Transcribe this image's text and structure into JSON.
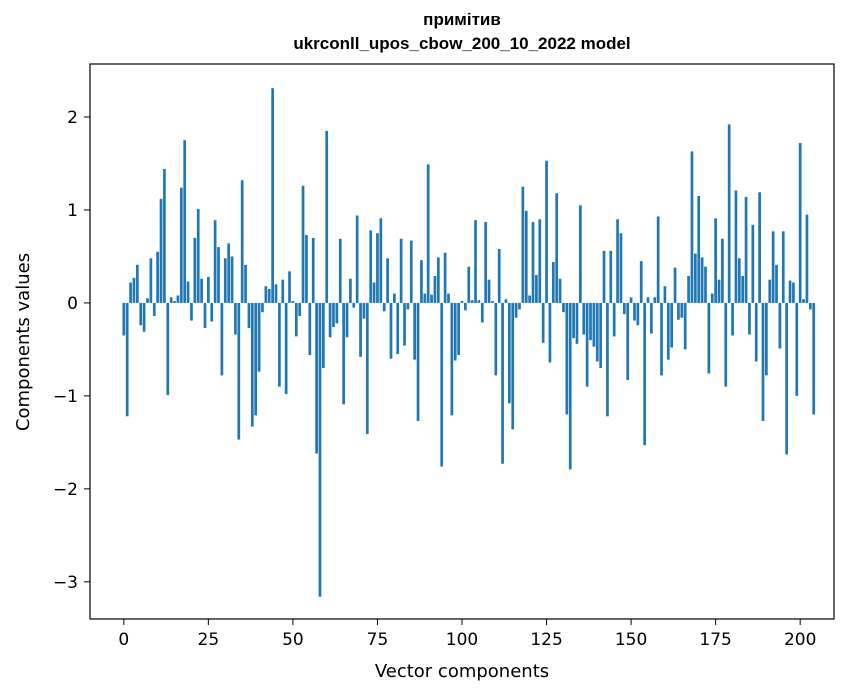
{
  "chart_data": {
    "type": "bar",
    "title": [
      "примітив",
      "ukrconll_upos_cbow_200_10_2022 model"
    ],
    "xlabel": "Vector components",
    "ylabel": "Components values",
    "xlim": [
      -10,
      210
    ],
    "ylim": [
      -3.4,
      2.57
    ],
    "xticks": [
      0,
      25,
      50,
      75,
      100,
      125,
      150,
      175,
      200
    ],
    "xtick_labels": [
      "0",
      "25",
      "50",
      "75",
      "100",
      "125",
      "150",
      "175",
      "200"
    ],
    "yticks": [
      -3,
      -2,
      -1,
      0,
      1,
      2
    ],
    "ytick_labels": [
      "−3",
      "−2",
      "−1",
      "0",
      "1",
      "2"
    ],
    "bar_color": "#1f77b4",
    "values": [
      -0.35,
      -1.22,
      0.22,
      0.27,
      0.41,
      -0.24,
      -0.31,
      0.05,
      0.48,
      -0.14,
      0.55,
      1.12,
      1.44,
      -0.99,
      0.06,
      0.02,
      0.08,
      1.24,
      1.75,
      0.23,
      -0.19,
      0.7,
      1.01,
      0.26,
      -0.27,
      0.28,
      -0.2,
      0.89,
      0.6,
      -0.78,
      0.48,
      0.64,
      0.5,
      -0.34,
      -1.47,
      1.32,
      0.41,
      -0.27,
      -1.33,
      -1.21,
      -0.74,
      -0.1,
      0.18,
      0.15,
      2.31,
      0.2,
      -0.9,
      0.25,
      -0.98,
      0.34,
      0.02,
      -0.36,
      -0.14,
      1.26,
      0.73,
      -0.56,
      0.7,
      -1.62,
      -3.16,
      -0.7,
      1.85,
      -0.37,
      -0.26,
      -0.22,
      0.69,
      -1.09,
      -0.37,
      0.26,
      -0.05,
      0.94,
      -0.58,
      -0.17,
      -1.41,
      0.78,
      0.22,
      0.75,
      0.91,
      -0.09,
      0.48,
      -0.6,
      0.1,
      -0.55,
      0.69,
      -0.46,
      -0.07,
      0.67,
      -0.61,
      -1.27,
      0.46,
      0.1,
      1.49,
      0.09,
      0.29,
      0.49,
      -1.76,
      0.54,
      0.1,
      -1.21,
      -0.62,
      -0.56,
      0.02,
      -0.08,
      0.39,
      0.03,
      0.89,
      0.03,
      -0.21,
      0.87,
      0.25,
      0.02,
      -0.78,
      0.58,
      -1.73,
      0.04,
      -1.08,
      -1.36,
      -0.16,
      -0.07,
      1.25,
      0.99,
      0.08,
      0.87,
      0.3,
      0.9,
      -0.43,
      1.53,
      -0.64,
      0.44,
      1.18,
      0.26,
      -0.1,
      -1.2,
      -1.79,
      -0.38,
      -0.44,
      1.05,
      -0.34,
      -0.9,
      -0.4,
      -0.47,
      -0.63,
      -0.7,
      0.56,
      -1.22,
      0.56,
      -0.36,
      0.9,
      0.75,
      -0.12,
      -0.83,
      0.06,
      -0.19,
      -0.24,
      0.45,
      -1.53,
      0.06,
      -0.33,
      0.06,
      0.93,
      -0.78,
      0.18,
      -0.61,
      -0.48,
      0.38,
      -0.18,
      -0.16,
      -0.5,
      0.29,
      1.63,
      0.53,
      1.15,
      0.49,
      0.39,
      -0.76,
      0.1,
      0.91,
      0.25,
      0.69,
      -0.9,
      1.92,
      -0.35,
      1.21,
      0.48,
      0.29,
      1.14,
      -0.34,
      0.84,
      -0.63,
      1.19,
      -1.27,
      -0.78,
      0.25,
      0.77,
      0.41,
      -0.49,
      0.77,
      -1.63,
      0.24,
      0.22,
      -1.0,
      1.72,
      0.04,
      0.95,
      -0.07,
      -1.2
    ]
  }
}
